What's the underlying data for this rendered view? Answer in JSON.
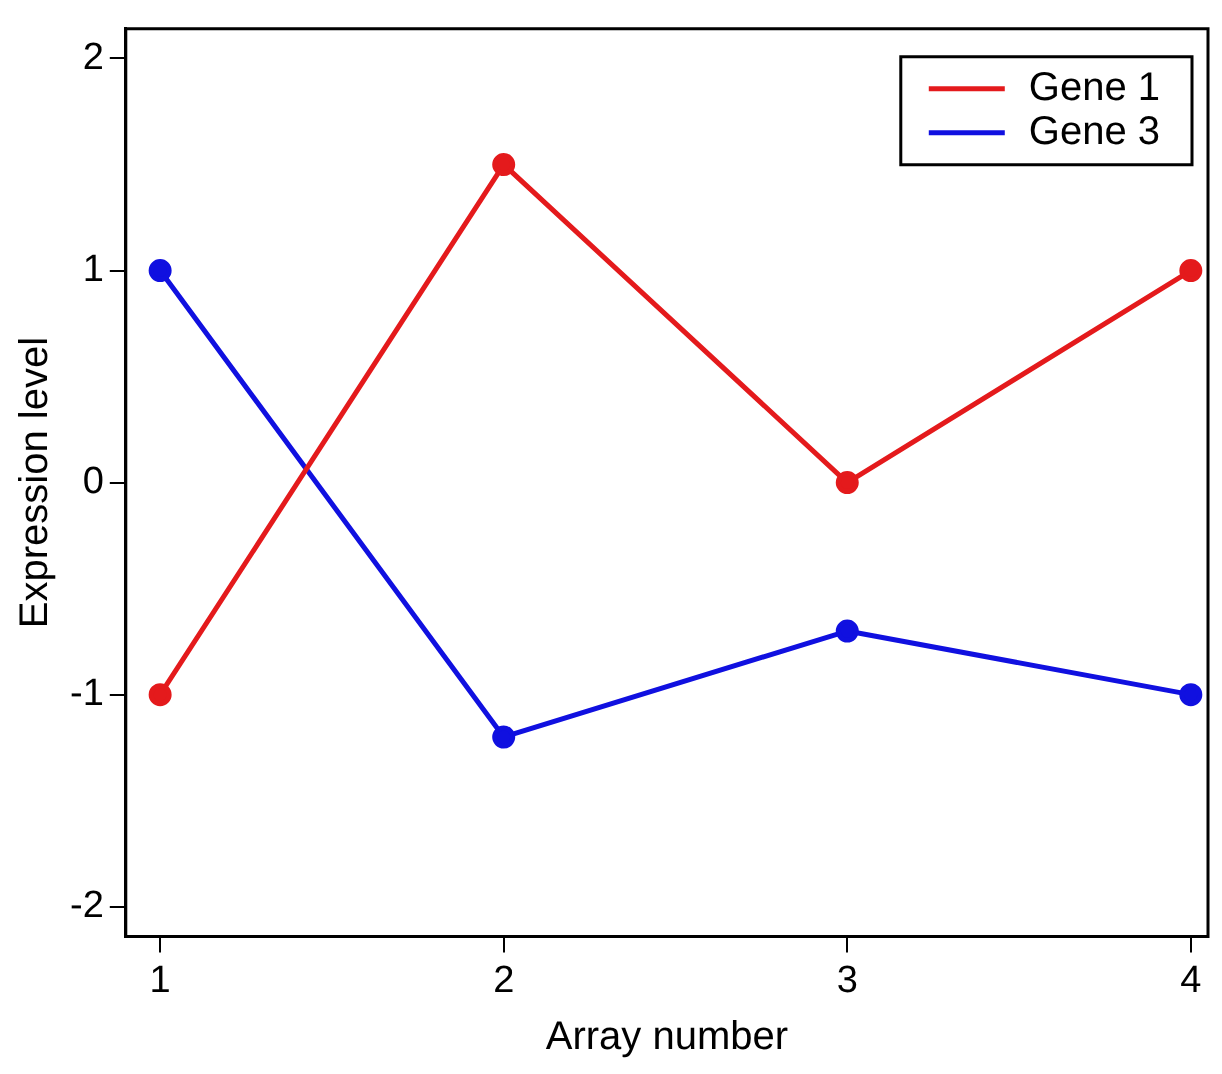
{
  "chart_data": {
    "type": "line",
    "xlabel": "Array number",
    "ylabel": "Expression level",
    "x": [
      1,
      2,
      3,
      4
    ],
    "xlim": [
      0.9,
      4.05
    ],
    "xticks": [
      1,
      2,
      3,
      4
    ],
    "ylim": [
      -2.14,
      2.14
    ],
    "yticks": [
      -2,
      -1,
      0,
      1,
      2
    ],
    "series": [
      {
        "name": "Gene 1",
        "color": "#e41a1c",
        "values": [
          -1,
          1.5,
          0,
          1
        ]
      },
      {
        "name": "Gene 3",
        "color": "#1010e0",
        "values": [
          1,
          -1.2,
          -0.7,
          -1
        ]
      }
    ],
    "marker": "circle",
    "line_style": "solid",
    "grid": false,
    "legend": "top right"
  }
}
